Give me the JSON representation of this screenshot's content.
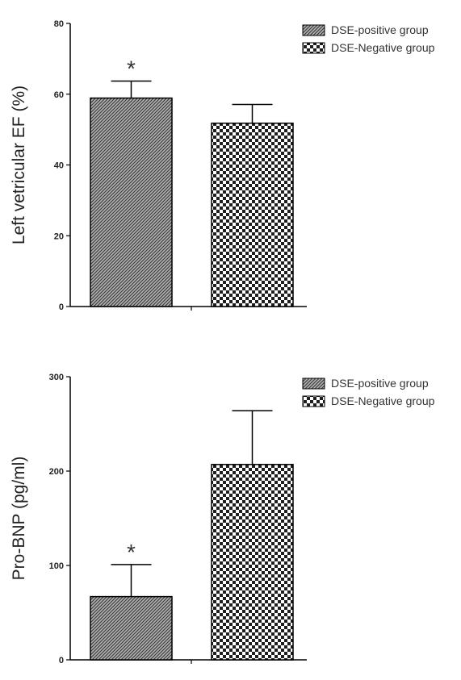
{
  "chart_data": [
    {
      "type": "bar",
      "categories": [
        "DSE-positive group",
        "DSE-Negative group"
      ],
      "values": [
        58.9,
        51.8
      ],
      "error": [
        4.8,
        5.3
      ],
      "significance": [
        "*",
        ""
      ],
      "ylabel": "Left vetricular EF (%)",
      "xlabel": "",
      "ylim": [
        0,
        80
      ],
      "yticks": [
        0,
        20,
        40,
        60,
        80
      ],
      "legend": [
        "DSE-positive group",
        "DSE-Negative group"
      ],
      "legend_position": "top-right",
      "grid": false
    },
    {
      "type": "bar",
      "categories": [
        "DSE-positive group",
        "DSE-Negative group"
      ],
      "values": [
        67,
        207
      ],
      "error": [
        34,
        57
      ],
      "significance": [
        "*",
        ""
      ],
      "ylabel": "Pro-BNP (pg/ml)",
      "xlabel": "",
      "ylim": [
        0,
        300
      ],
      "yticks": [
        0,
        100,
        200,
        300
      ],
      "legend": [
        "DSE-positive group",
        "DSE-Negative group"
      ],
      "legend_position": "top-right",
      "grid": false
    }
  ]
}
